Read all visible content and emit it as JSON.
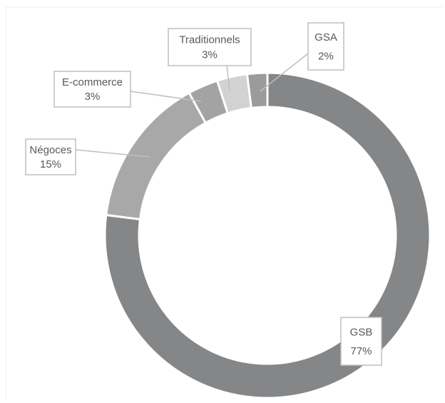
{
  "chart_data": {
    "type": "donut",
    "categories": [
      "GSB",
      "Négoces",
      "E-commerce",
      "Traditionnels",
      "GSA"
    ],
    "values": [
      77,
      15,
      3,
      3,
      2
    ],
    "value_labels": [
      "77%",
      "15%",
      "3%",
      "3%",
      "2%"
    ],
    "colors": [
      "#858688",
      "#a8a8a8",
      "#a3a3a3",
      "#d2d2d2",
      "#9b9b9b"
    ]
  }
}
